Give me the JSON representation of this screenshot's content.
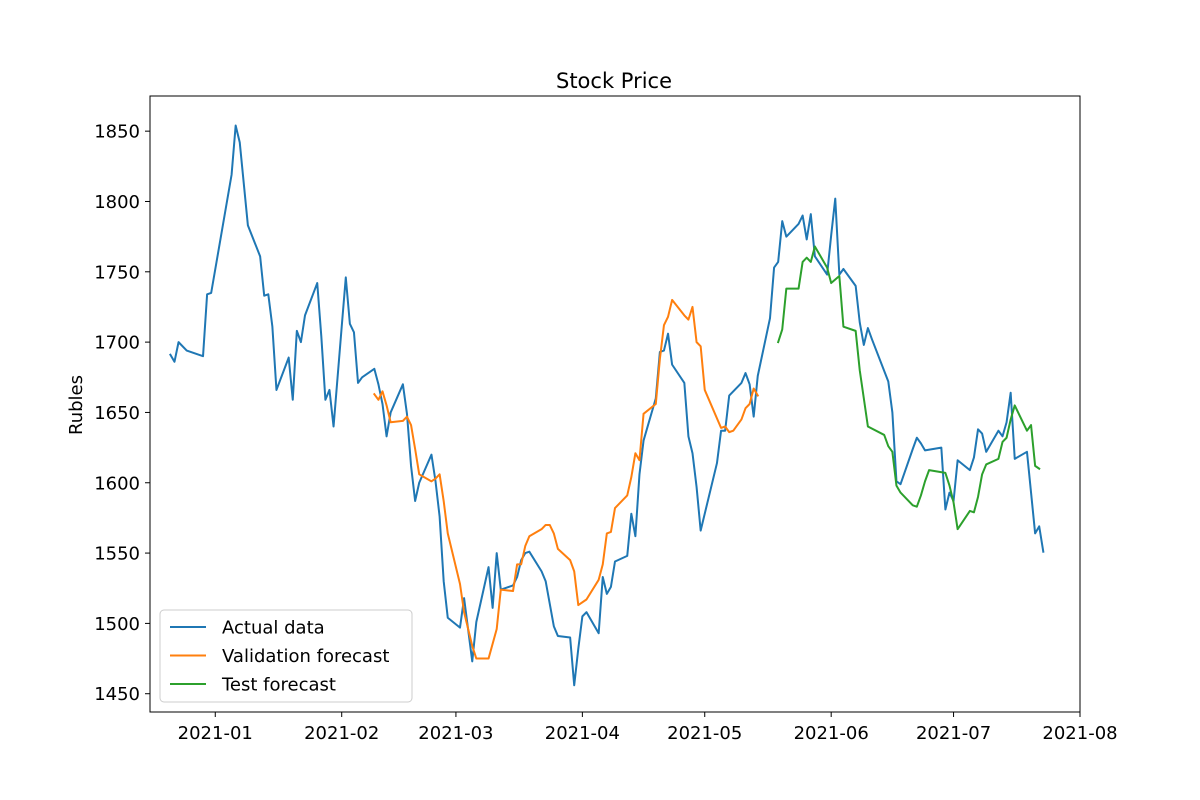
{
  "chart_data": {
    "type": "line",
    "title": "Stock Price",
    "xlabel": "",
    "ylabel": "Rubles",
    "grid": false,
    "legend_position": "lower-left",
    "xlim": [
      "2020-12-16",
      "2021-08-01"
    ],
    "ylim": [
      1437,
      1875
    ],
    "x_ticks": [
      "2021-01-01",
      "2021-02-01",
      "2021-03-01",
      "2021-04-01",
      "2021-05-01",
      "2021-06-01",
      "2021-07-01",
      "2021-08-01"
    ],
    "x_tick_labels": [
      "2021-01",
      "2021-02",
      "2021-03",
      "2021-04",
      "2021-05",
      "2021-06",
      "2021-07",
      "2021-08"
    ],
    "y_ticks": [
      1450,
      1500,
      1550,
      1600,
      1650,
      1700,
      1750,
      1800,
      1850
    ],
    "series": [
      {
        "name": "Actual data",
        "color": "#1f77b4",
        "points": [
          [
            "2020-12-21",
            1691
          ],
          [
            "2020-12-22",
            1686
          ],
          [
            "2020-12-23",
            1700
          ],
          [
            "2020-12-25",
            1694
          ],
          [
            "2020-12-29",
            1690
          ],
          [
            "2020-12-30",
            1734
          ],
          [
            "2020-12-31",
            1735
          ],
          [
            "2021-01-05",
            1819
          ],
          [
            "2021-01-06",
            1854
          ],
          [
            "2021-01-07",
            1842
          ],
          [
            "2021-01-09",
            1783
          ],
          [
            "2021-01-12",
            1761
          ],
          [
            "2021-01-13",
            1733
          ],
          [
            "2021-01-14",
            1734
          ],
          [
            "2021-01-15",
            1711
          ],
          [
            "2021-01-16",
            1666
          ],
          [
            "2021-01-19",
            1689
          ],
          [
            "2021-01-20",
            1659
          ],
          [
            "2021-01-21",
            1708
          ],
          [
            "2021-01-22",
            1700
          ],
          [
            "2021-01-23",
            1719
          ],
          [
            "2021-01-26",
            1742
          ],
          [
            "2021-01-27",
            1704
          ],
          [
            "2021-01-28",
            1659
          ],
          [
            "2021-01-29",
            1666
          ],
          [
            "2021-01-30",
            1640
          ],
          [
            "2021-02-01",
            1711
          ],
          [
            "2021-02-02",
            1746
          ],
          [
            "2021-02-03",
            1713
          ],
          [
            "2021-02-04",
            1707
          ],
          [
            "2021-02-05",
            1671
          ],
          [
            "2021-02-06",
            1675
          ],
          [
            "2021-02-09",
            1681
          ],
          [
            "2021-02-10",
            1670
          ],
          [
            "2021-02-11",
            1656
          ],
          [
            "2021-02-12",
            1633
          ],
          [
            "2021-02-13",
            1650
          ],
          [
            "2021-02-16",
            1670
          ],
          [
            "2021-02-17",
            1649
          ],
          [
            "2021-02-18",
            1612
          ],
          [
            "2021-02-19",
            1587
          ],
          [
            "2021-02-20",
            1600
          ],
          [
            "2021-02-23",
            1620
          ],
          [
            "2021-02-24",
            1601
          ],
          [
            "2021-02-25",
            1576
          ],
          [
            "2021-02-26",
            1530
          ],
          [
            "2021-02-27",
            1504
          ],
          [
            "2021-03-02",
            1497
          ],
          [
            "2021-03-03",
            1518
          ],
          [
            "2021-03-05",
            1473
          ],
          [
            "2021-03-06",
            1501
          ],
          [
            "2021-03-09",
            1540
          ],
          [
            "2021-03-10",
            1511
          ],
          [
            "2021-03-11",
            1550
          ],
          [
            "2021-03-12",
            1524
          ],
          [
            "2021-03-15",
            1527
          ],
          [
            "2021-03-16",
            1533
          ],
          [
            "2021-03-17",
            1545
          ],
          [
            "2021-03-18",
            1550
          ],
          [
            "2021-03-19",
            1551
          ],
          [
            "2021-03-22",
            1537
          ],
          [
            "2021-03-23",
            1530
          ],
          [
            "2021-03-24",
            1514
          ],
          [
            "2021-03-25",
            1498
          ],
          [
            "2021-03-26",
            1491
          ],
          [
            "2021-03-29",
            1490
          ],
          [
            "2021-03-30",
            1456
          ],
          [
            "2021-03-31",
            1482
          ],
          [
            "2021-04-01",
            1505
          ],
          [
            "2021-04-02",
            1508
          ],
          [
            "2021-04-05",
            1493
          ],
          [
            "2021-04-06",
            1533
          ],
          [
            "2021-04-07",
            1521
          ],
          [
            "2021-04-08",
            1526
          ],
          [
            "2021-04-09",
            1544
          ],
          [
            "2021-04-12",
            1548
          ],
          [
            "2021-04-13",
            1578
          ],
          [
            "2021-04-14",
            1562
          ],
          [
            "2021-04-15",
            1606
          ],
          [
            "2021-04-16",
            1630
          ],
          [
            "2021-04-19",
            1660
          ],
          [
            "2021-04-20",
            1693
          ],
          [
            "2021-04-21",
            1694
          ],
          [
            "2021-04-22",
            1706
          ],
          [
            "2021-04-23",
            1684
          ],
          [
            "2021-04-26",
            1671
          ],
          [
            "2021-04-27",
            1633
          ],
          [
            "2021-04-28",
            1621
          ],
          [
            "2021-04-29",
            1597
          ],
          [
            "2021-04-30",
            1566
          ],
          [
            "2021-05-04",
            1614
          ],
          [
            "2021-05-05",
            1637
          ],
          [
            "2021-05-06",
            1637
          ],
          [
            "2021-05-07",
            1662
          ],
          [
            "2021-05-10",
            1671
          ],
          [
            "2021-05-11",
            1678
          ],
          [
            "2021-05-12",
            1670
          ],
          [
            "2021-05-13",
            1647
          ],
          [
            "2021-05-14",
            1676
          ],
          [
            "2021-05-17",
            1717
          ],
          [
            "2021-05-18",
            1753
          ],
          [
            "2021-05-19",
            1757
          ],
          [
            "2021-05-20",
            1786
          ],
          [
            "2021-05-21",
            1775
          ],
          [
            "2021-05-24",
            1784
          ],
          [
            "2021-05-25",
            1790
          ],
          [
            "2021-05-26",
            1773
          ],
          [
            "2021-05-27",
            1791
          ],
          [
            "2021-05-28",
            1761
          ],
          [
            "2021-05-31",
            1748
          ],
          [
            "2021-06-01",
            1776
          ],
          [
            "2021-06-02",
            1802
          ],
          [
            "2021-06-03",
            1748
          ],
          [
            "2021-06-04",
            1752
          ],
          [
            "2021-06-07",
            1740
          ],
          [
            "2021-06-08",
            1714
          ],
          [
            "2021-06-09",
            1698
          ],
          [
            "2021-06-10",
            1710
          ],
          [
            "2021-06-11",
            1702
          ],
          [
            "2021-06-15",
            1672
          ],
          [
            "2021-06-16",
            1650
          ],
          [
            "2021-06-17",
            1601
          ],
          [
            "2021-06-18",
            1599
          ],
          [
            "2021-06-21",
            1624
          ],
          [
            "2021-06-22",
            1632
          ],
          [
            "2021-06-23",
            1628
          ],
          [
            "2021-06-24",
            1623
          ],
          [
            "2021-06-28",
            1625
          ],
          [
            "2021-06-29",
            1581
          ],
          [
            "2021-06-30",
            1593
          ],
          [
            "2021-07-01",
            1587
          ],
          [
            "2021-07-02",
            1616
          ],
          [
            "2021-07-05",
            1609
          ],
          [
            "2021-07-06",
            1618
          ],
          [
            "2021-07-07",
            1638
          ],
          [
            "2021-07-08",
            1635
          ],
          [
            "2021-07-09",
            1622
          ],
          [
            "2021-07-12",
            1637
          ],
          [
            "2021-07-13",
            1633
          ],
          [
            "2021-07-14",
            1643
          ],
          [
            "2021-07-15",
            1664
          ],
          [
            "2021-07-16",
            1617
          ],
          [
            "2021-07-19",
            1622
          ],
          [
            "2021-07-20",
            1593
          ],
          [
            "2021-07-21",
            1564
          ],
          [
            "2021-07-22",
            1569
          ],
          [
            "2021-07-23",
            1551
          ]
        ]
      },
      {
        "name": "Validation forecast",
        "color": "#ff7f0e",
        "points": [
          [
            "2021-02-09",
            1663
          ],
          [
            "2021-02-10",
            1659
          ],
          [
            "2021-02-11",
            1665
          ],
          [
            "2021-02-12",
            1655
          ],
          [
            "2021-02-13",
            1643
          ],
          [
            "2021-02-16",
            1644
          ],
          [
            "2021-02-17",
            1647
          ],
          [
            "2021-02-18",
            1641
          ],
          [
            "2021-02-19",
            1624
          ],
          [
            "2021-02-20",
            1606
          ],
          [
            "2021-02-23",
            1601
          ],
          [
            "2021-02-24",
            1603
          ],
          [
            "2021-02-25",
            1606
          ],
          [
            "2021-02-26",
            1587
          ],
          [
            "2021-02-27",
            1564
          ],
          [
            "2021-03-02",
            1528
          ],
          [
            "2021-03-03",
            1508
          ],
          [
            "2021-03-05",
            1484
          ],
          [
            "2021-03-06",
            1475
          ],
          [
            "2021-03-09",
            1475
          ],
          [
            "2021-03-11",
            1496
          ],
          [
            "2021-03-12",
            1524
          ],
          [
            "2021-03-15",
            1523
          ],
          [
            "2021-03-16",
            1542
          ],
          [
            "2021-03-17",
            1542
          ],
          [
            "2021-03-18",
            1555
          ],
          [
            "2021-03-19",
            1562
          ],
          [
            "2021-03-22",
            1567
          ],
          [
            "2021-03-23",
            1570
          ],
          [
            "2021-03-24",
            1570
          ],
          [
            "2021-03-25",
            1564
          ],
          [
            "2021-03-26",
            1553
          ],
          [
            "2021-03-29",
            1545
          ],
          [
            "2021-03-30",
            1537
          ],
          [
            "2021-03-31",
            1513
          ],
          [
            "2021-04-02",
            1517
          ],
          [
            "2021-04-05",
            1531
          ],
          [
            "2021-04-06",
            1542
          ],
          [
            "2021-04-07",
            1564
          ],
          [
            "2021-04-08",
            1565
          ],
          [
            "2021-04-09",
            1582
          ],
          [
            "2021-04-12",
            1591
          ],
          [
            "2021-04-13",
            1604
          ],
          [
            "2021-04-14",
            1621
          ],
          [
            "2021-04-15",
            1616
          ],
          [
            "2021-04-16",
            1649
          ],
          [
            "2021-04-19",
            1656
          ],
          [
            "2021-04-20",
            1688
          ],
          [
            "2021-04-21",
            1712
          ],
          [
            "2021-04-22",
            1718
          ],
          [
            "2021-04-23",
            1730
          ],
          [
            "2021-04-26",
            1719
          ],
          [
            "2021-04-27",
            1716
          ],
          [
            "2021-04-28",
            1725
          ],
          [
            "2021-04-29",
            1700
          ],
          [
            "2021-04-30",
            1697
          ],
          [
            "2021-05-01",
            1666
          ],
          [
            "2021-05-05",
            1639
          ],
          [
            "2021-05-06",
            1640
          ],
          [
            "2021-05-07",
            1636
          ],
          [
            "2021-05-08",
            1637
          ],
          [
            "2021-05-10",
            1645
          ],
          [
            "2021-05-11",
            1653
          ],
          [
            "2021-05-12",
            1656
          ],
          [
            "2021-05-13",
            1667
          ],
          [
            "2021-05-14",
            1662
          ]
        ]
      },
      {
        "name": "Test forecast",
        "color": "#2ca02c",
        "points": [
          [
            "2021-05-19",
            1700
          ],
          [
            "2021-05-20",
            1709
          ],
          [
            "2021-05-21",
            1738
          ],
          [
            "2021-05-24",
            1738
          ],
          [
            "2021-05-25",
            1757
          ],
          [
            "2021-05-26",
            1760
          ],
          [
            "2021-05-27",
            1757
          ],
          [
            "2021-05-28",
            1768
          ],
          [
            "2021-05-31",
            1753
          ],
          [
            "2021-06-01",
            1742
          ],
          [
            "2021-06-03",
            1747
          ],
          [
            "2021-06-04",
            1711
          ],
          [
            "2021-06-07",
            1708
          ],
          [
            "2021-06-08",
            1680
          ],
          [
            "2021-06-09",
            1660
          ],
          [
            "2021-06-10",
            1640
          ],
          [
            "2021-06-14",
            1634
          ],
          [
            "2021-06-15",
            1626
          ],
          [
            "2021-06-16",
            1622
          ],
          [
            "2021-06-17",
            1598
          ],
          [
            "2021-06-18",
            1593
          ],
          [
            "2021-06-21",
            1584
          ],
          [
            "2021-06-22",
            1583
          ],
          [
            "2021-06-23",
            1591
          ],
          [
            "2021-06-24",
            1601
          ],
          [
            "2021-06-25",
            1609
          ],
          [
            "2021-06-29",
            1607
          ],
          [
            "2021-06-30",
            1598
          ],
          [
            "2021-07-01",
            1586
          ],
          [
            "2021-07-02",
            1567
          ],
          [
            "2021-07-05",
            1580
          ],
          [
            "2021-07-06",
            1579
          ],
          [
            "2021-07-07",
            1590
          ],
          [
            "2021-07-08",
            1606
          ],
          [
            "2021-07-09",
            1613
          ],
          [
            "2021-07-12",
            1617
          ],
          [
            "2021-07-13",
            1629
          ],
          [
            "2021-07-14",
            1632
          ],
          [
            "2021-07-15",
            1645
          ],
          [
            "2021-07-16",
            1655
          ],
          [
            "2021-07-19",
            1637
          ],
          [
            "2021-07-20",
            1641
          ],
          [
            "2021-07-21",
            1612
          ],
          [
            "2021-07-22",
            1610
          ]
        ]
      }
    ]
  }
}
